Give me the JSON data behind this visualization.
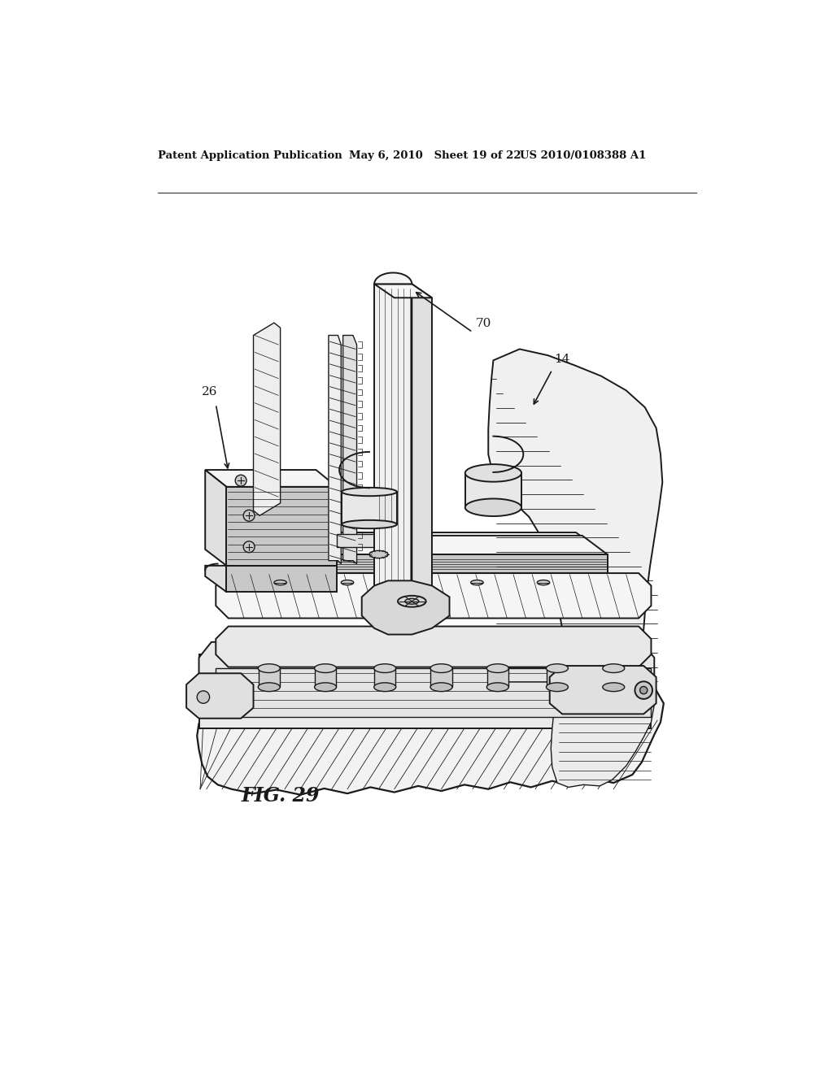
{
  "background_color": "#ffffff",
  "header_left": "Patent Application Publication",
  "header_center": "May 6, 2010   Sheet 19 of 22",
  "header_right": "US 2010/0108388 A1",
  "figure_label": "FIG. 29",
  "label_26": "26",
  "label_70": "70",
  "label_14": "14",
  "line_color": "#1a1a1a",
  "fill_light": "#f5f5f5",
  "fill_mid": "#e0e0e0",
  "fill_dark": "#c8c8c8",
  "fill_darkest": "#aaaaaa"
}
